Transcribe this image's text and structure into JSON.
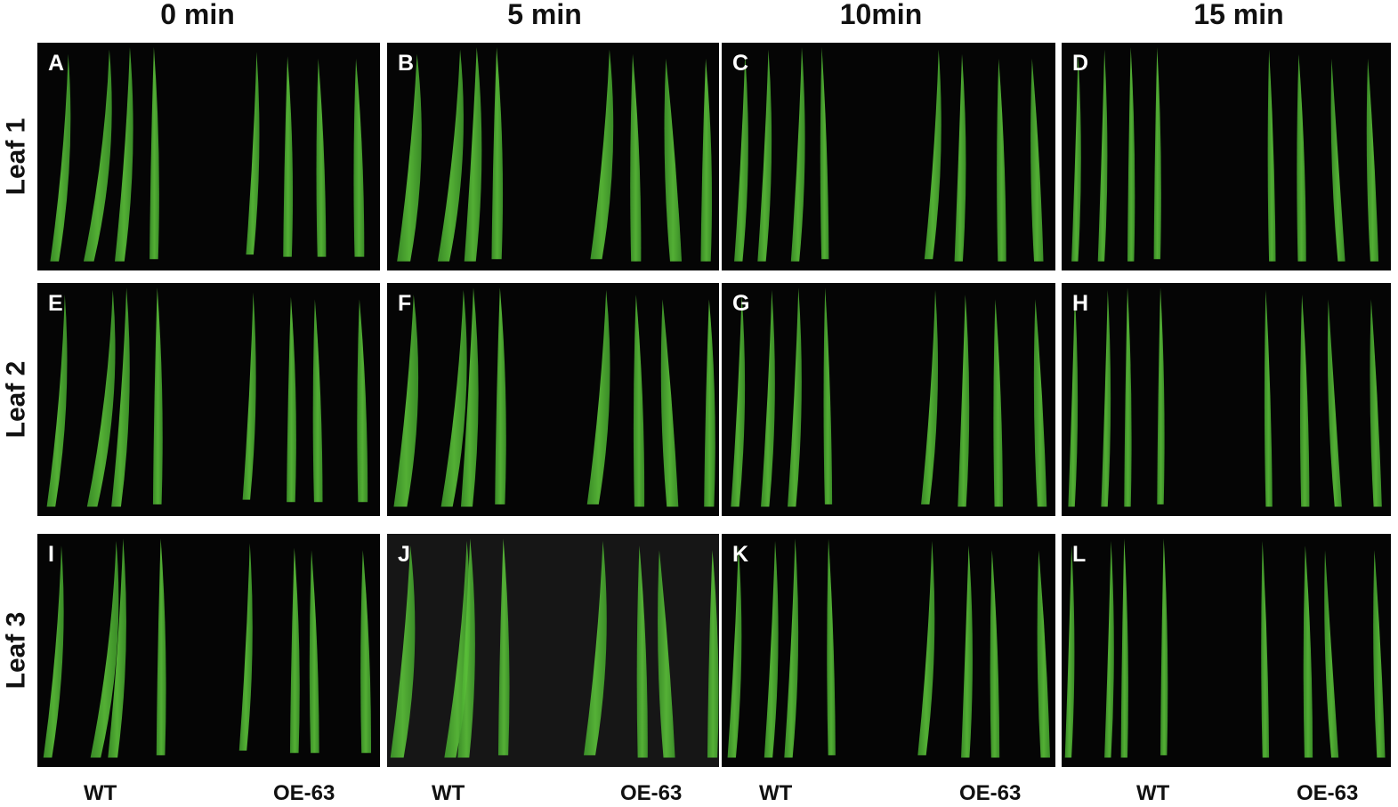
{
  "columns": [
    "0 min",
    "5 min",
    "10min",
    "15 min"
  ],
  "rows": [
    "Leaf 1",
    "Leaf 2",
    "Leaf 3"
  ],
  "panels": [
    {
      "label": "A"
    },
    {
      "label": "B"
    },
    {
      "label": "C"
    },
    {
      "label": "D"
    },
    {
      "label": "E"
    },
    {
      "label": "F"
    },
    {
      "label": "G"
    },
    {
      "label": "H"
    },
    {
      "label": "I"
    },
    {
      "label": "J"
    },
    {
      "label": "K"
    },
    {
      "label": "L"
    }
  ],
  "groups": {
    "wt": "WT",
    "oe": "OE-63"
  },
  "colors": {
    "background": "#050505",
    "leaf": "#3f9a2a",
    "leaf_light": "#5cc23a"
  }
}
